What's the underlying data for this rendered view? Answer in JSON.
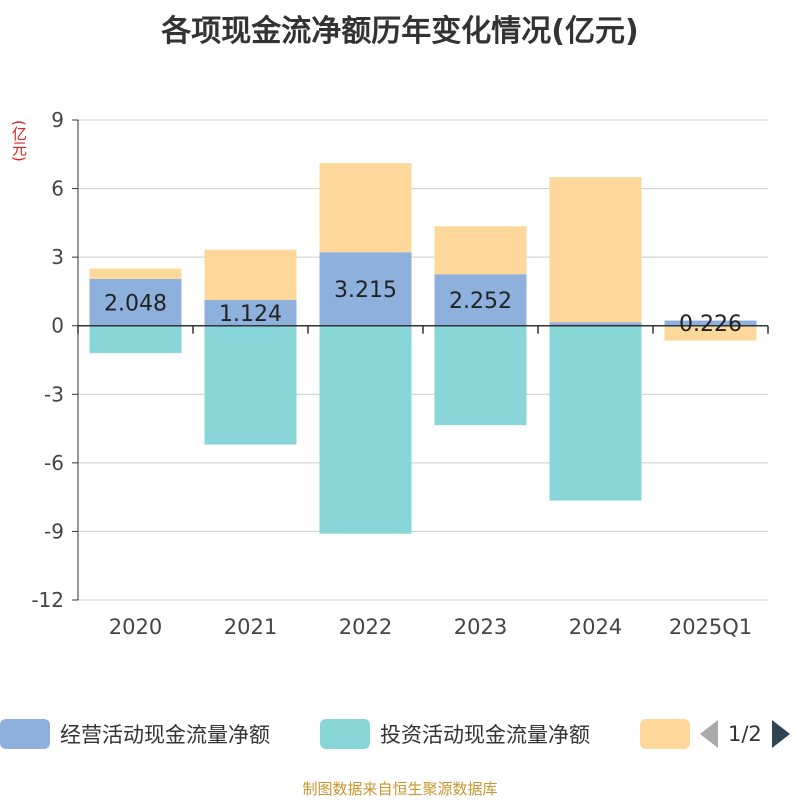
{
  "title": "各项现金流净额历年变化情况(亿元)",
  "unit_label": "(亿元)",
  "source": "制图数据来自恒生聚源数据库",
  "legend": {
    "items": [
      {
        "label": "经营活动现金流量净额",
        "color": "#8eb0dc"
      },
      {
        "label": "投资活动现金流量净额",
        "color": "#88d6d8"
      },
      {
        "label": "",
        "color": "#fdd89a"
      }
    ],
    "page": "1/2"
  },
  "chart_data": {
    "type": "bar",
    "stacked": true,
    "categories": [
      "2020",
      "2021",
      "2022",
      "2023",
      "2024",
      "2025Q1"
    ],
    "ylim": [
      -12,
      9
    ],
    "yticks": [
      "9",
      "6",
      "3",
      "0",
      "-3",
      "-6",
      "-9",
      "-12"
    ],
    "grid": true,
    "series": [
      {
        "name": "经营活动现金流量净额",
        "color": "#8eb0dc",
        "values": [
          2.048,
          1.124,
          3.215,
          2.252,
          0.15,
          0.226
        ],
        "labels": [
          "2.048",
          "1.124",
          "3.215",
          "2.252",
          "",
          "0.226"
        ]
      },
      {
        "name": "投资活动现金流量净额",
        "color": "#88d6d8",
        "values": [
          -1.2,
          -5.2,
          -9.1,
          -4.35,
          -7.65,
          -0.05
        ]
      },
      {
        "name": "",
        "color": "#fdd89a",
        "values": [
          0.45,
          2.2,
          3.9,
          2.1,
          6.35,
          -0.6
        ]
      }
    ]
  }
}
